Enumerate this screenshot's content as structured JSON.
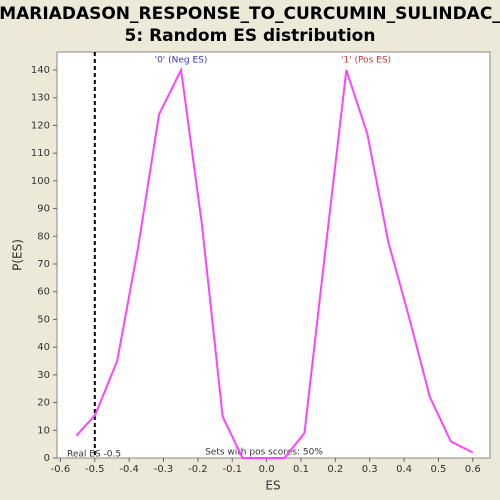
{
  "chart_data": {
    "type": "line",
    "title": [
      "MARIADASON_RESPONSE_TO_CURCUMIN_SULINDAC_",
      "5: Random ES distribution"
    ],
    "x_label": "ES",
    "y_label": "P(ES)",
    "x": [
      -0.554,
      -0.499,
      -0.435,
      -0.374,
      -0.313,
      -0.249,
      -0.188,
      -0.128,
      -0.07,
      -0.009,
      0.052,
      0.11,
      0.171,
      0.232,
      0.293,
      0.354,
      0.414,
      0.475,
      0.536,
      0.6
    ],
    "series": [
      {
        "color": "#ff44ff",
        "values": [
          8,
          15.5,
          35,
          76,
          124,
          140,
          84,
          15,
          0,
          0,
          0,
          9,
          75,
          140,
          117,
          78,
          51,
          22,
          6,
          2
        ]
      }
    ],
    "xlim": [
      -0.61,
      0.65
    ],
    "ylim": [
      0,
      146.5
    ],
    "xticks": [
      -0.6,
      -0.5,
      -0.4,
      -0.3,
      -0.2,
      -0.1,
      {
        "value": 0,
        "label": "0.0"
      },
      0.1,
      0.2,
      0.3,
      0.4,
      0.5,
      0.6
    ],
    "yticks": [
      0,
      10,
      20,
      30,
      40,
      50,
      60,
      70,
      80,
      90,
      100,
      110,
      120,
      130,
      140
    ],
    "real_es": -0.5,
    "real_es_label": "Real ES -0.5",
    "neg_label": "'0' (Neg ES)",
    "neg_color": "#3333cc",
    "pos_label": "'1' (Pos ES)",
    "pos_color": "#cc3333",
    "footer": "Sets with pos scores: 50%"
  }
}
